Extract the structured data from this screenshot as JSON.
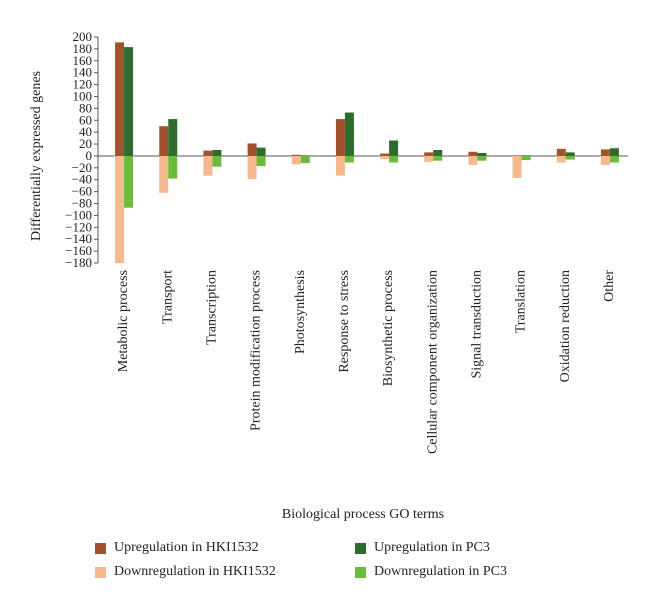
{
  "chart_data": {
    "type": "bar",
    "title": "",
    "xlabel": "Biological process GO terms",
    "ylabel": "Differentially expressed genes",
    "ylim": [
      -180,
      200
    ],
    "yticks": [
      200,
      180,
      160,
      140,
      120,
      100,
      80,
      60,
      40,
      20,
      0,
      -20,
      -40,
      -60,
      -80,
      -100,
      -120,
      -140,
      -160,
      -180
    ],
    "grid": false,
    "legend_position": "bottom",
    "categories": [
      "Metabolic process",
      "Transport",
      "Transcription",
      "Protein modification process",
      "Photosynthesis",
      "Response to stress",
      "Biosynthetic process",
      "Cellular component organization",
      "Signal transduction",
      "Translation",
      "Oxidation reduction",
      "Other"
    ],
    "series": [
      {
        "name": "Upregulation in HKI1532",
        "color": "#a0522d",
        "values": [
          191,
          50,
          9,
          21,
          2,
          62,
          4,
          6,
          7,
          1,
          12,
          11
        ]
      },
      {
        "name": "Upregulation in PC3",
        "color": "#2e6b2e",
        "values": [
          183,
          62,
          10,
          14,
          1,
          73,
          26,
          10,
          5,
          1,
          6,
          13
        ]
      },
      {
        "name": "Downregulation in HKI1532",
        "color": "#f5b98f",
        "values": [
          -180,
          -62,
          -33,
          -39,
          -14,
          -33,
          -5,
          -10,
          -15,
          -37,
          -11,
          -15
        ]
      },
      {
        "name": "Downregulation in PC3",
        "color": "#6cbb3c",
        "values": [
          -87,
          -38,
          -18,
          -17,
          -12,
          -11,
          -11,
          -8,
          -8,
          -7,
          -6,
          -11
        ]
      }
    ]
  }
}
